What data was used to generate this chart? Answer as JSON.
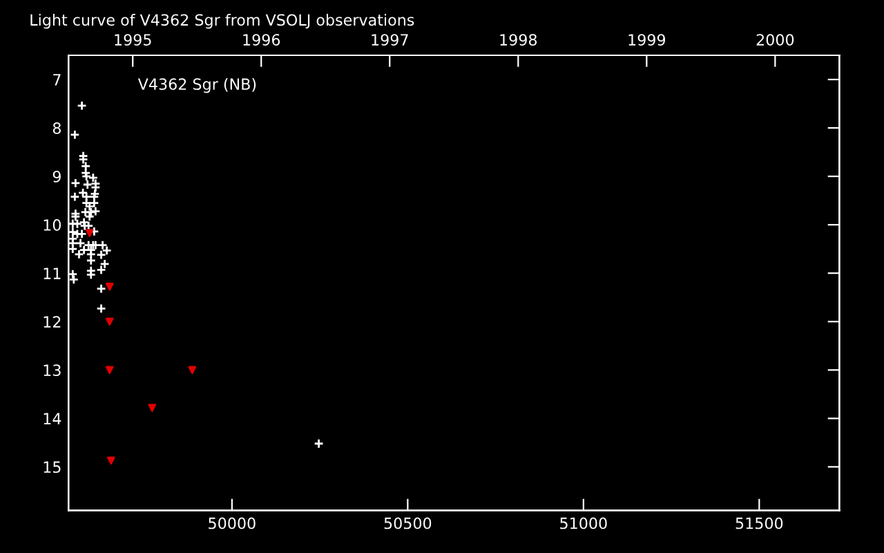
{
  "chart_data": {
    "type": "scatter",
    "title": "Light curve of V4362 Sgr from VSOLJ observations",
    "annotations": [
      "V4362 Sgr (NB)"
    ],
    "xlim": [
      49535,
      51728
    ],
    "xticks": [
      50000,
      50500,
      51000,
      51500
    ],
    "x2lim": [
      1994.5,
      2000.5
    ],
    "x2ticks": [
      1995,
      1996,
      1997,
      1998,
      1999,
      2000
    ],
    "ylim": [
      15.9,
      6.5
    ],
    "yticks": [
      7,
      8,
      9,
      10,
      11,
      12,
      13,
      14,
      15
    ],
    "grid": false,
    "legend": false,
    "series": [
      {
        "color": "#ffffff",
        "marker": "cross",
        "x": [
          49573,
          49553,
          49577,
          49577,
          49584,
          49584,
          49586,
          49605,
          49555,
          49589,
          49612,
          49612,
          49576,
          49553,
          49586,
          49610,
          49608,
          49586,
          49608,
          49595,
          49583,
          49599,
          49612,
          49555,
          49555,
          49595,
          49579,
          49547,
          49560,
          49581,
          49592,
          49547,
          49560,
          49573,
          49608,
          49547,
          49547,
          49569,
          49592,
          49605,
          49612,
          49632,
          49547,
          49579,
          49599,
          49644,
          49565,
          49599,
          49628,
          49599,
          49638,
          49628,
          49547,
          49599,
          49599,
          49550,
          49628,
          49628,
          50247
        ],
        "values": [
          7.54,
          8.14,
          8.58,
          8.65,
          8.79,
          8.93,
          9.0,
          9.03,
          9.14,
          9.17,
          9.15,
          9.23,
          9.34,
          9.42,
          9.42,
          9.36,
          9.42,
          9.55,
          9.55,
          9.62,
          9.74,
          9.74,
          9.72,
          9.77,
          9.83,
          9.83,
          9.95,
          9.98,
          9.98,
          10.02,
          10.02,
          10.15,
          10.19,
          10.19,
          10.14,
          10.29,
          10.38,
          10.38,
          10.42,
          10.42,
          10.42,
          10.42,
          10.5,
          10.52,
          10.52,
          10.53,
          10.61,
          10.61,
          10.62,
          10.74,
          10.81,
          10.93,
          11.02,
          10.95,
          11.03,
          11.13,
          11.32,
          11.73,
          14.52
        ]
      },
      {
        "color": "#e00000",
        "marker": "triangle",
        "x": [
          49595,
          49652,
          49652,
          49652,
          49887,
          49773,
          49656
        ],
        "values": [
          10.17,
          11.28,
          12.0,
          13.0,
          13.0,
          13.78,
          14.87
        ]
      }
    ]
  }
}
